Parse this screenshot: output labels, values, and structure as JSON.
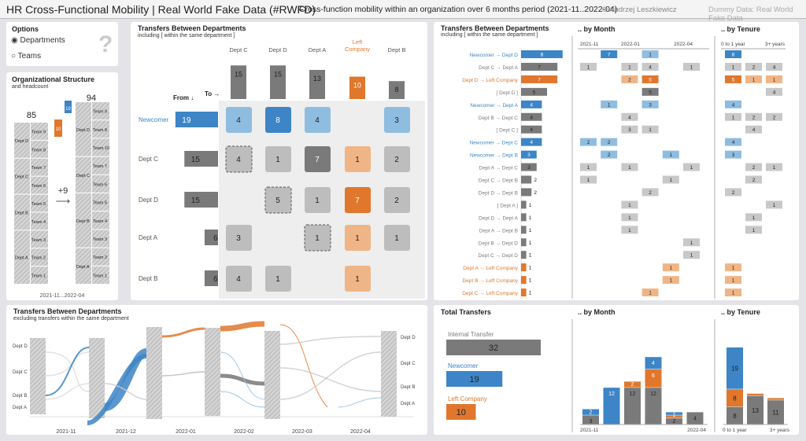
{
  "header": {
    "title": "HR Cross-Functional Mobility | Real World Fake Data (#RWFD)",
    "subtitle": "Cross-function mobility within an organization over 6 months period (2021-11..2022-04)",
    "author": "© Andrzej Leszkiewicz",
    "dummy": "Dummy Data: Real World Fake Data"
  },
  "colors": {
    "newcomer": "#3d85c6",
    "newcomer_light": "#8fbde0",
    "left": "#e0772d",
    "left_light": "#f0b586",
    "internal": "#7a7a7a",
    "internal_light": "#c8c8c8",
    "hatch": "#b5b5b5"
  },
  "options": {
    "title": "Options",
    "items": [
      {
        "label": "Departments",
        "selected": true
      },
      {
        "label": "Teams",
        "selected": false
      }
    ],
    "help": "?"
  },
  "org": {
    "title": "Organizational Structure",
    "subtitle": "and headcount",
    "before": "85",
    "after": "94",
    "delta": "+9",
    "arrow": "⟶",
    "period": "2021-11...2022-04",
    "new_count": "19",
    "left_count": "10",
    "left_col": [
      {
        "dept": "Dept D",
        "teams": [
          "Team 9",
          "Team 8"
        ]
      },
      {
        "dept": "Dept C",
        "teams": [
          "Team 7",
          "Team 6"
        ]
      },
      {
        "dept": "Dept B",
        "teams": [
          "Team 5",
          "Team 4"
        ]
      },
      {
        "dept": "Dept A",
        "teams": [
          "Team 3",
          "Team 2",
          "Team 1"
        ]
      }
    ],
    "right_col": [
      {
        "dept": "Dept D",
        "teams": [
          "Team 9",
          "Team 8",
          "Team 10"
        ]
      },
      {
        "dept": "Dept C",
        "teams": [
          "Team 7",
          "Team 6"
        ]
      },
      {
        "dept": "Dept B",
        "teams": [
          "Team 5",
          "Team 4",
          "Team 3"
        ]
      },
      {
        "dept": "Dept A",
        "teams": [
          "Team 2",
          "Team 1"
        ]
      }
    ]
  },
  "matrix": {
    "title": "Transfers Between Departments",
    "subtitle": "including  [ within the same department ]",
    "from": "From ↓",
    "to": "To →",
    "cols": [
      {
        "label": "Dept C",
        "total": 15
      },
      {
        "label": "Dept D",
        "total": 15
      },
      {
        "label": "Dept A",
        "total": 13
      },
      {
        "label": "Left Company",
        "total": 10
      },
      {
        "label": "Dept B",
        "total": 8
      }
    ],
    "rows": [
      {
        "label": "Newcomer",
        "total": 19
      },
      {
        "label": "Dept C",
        "total": 15
      },
      {
        "label": "Dept D",
        "total": 15
      },
      {
        "label": "Dept A",
        "total": 6
      },
      {
        "label": "Dept B",
        "total": 6
      }
    ],
    "cells": [
      [
        4,
        8,
        4,
        null,
        3
      ],
      [
        4,
        1,
        7,
        1,
        2
      ],
      [
        null,
        5,
        1,
        7,
        2
      ],
      [
        3,
        null,
        1,
        1,
        1
      ],
      [
        4,
        1,
        null,
        1,
        null
      ]
    ]
  },
  "flows": {
    "title": "Transfers Between Departments",
    "subtitle": "including  [ within the same department ]",
    "items": [
      {
        "label": "Newcomer → Dept D",
        "v": 8,
        "t": "new"
      },
      {
        "label": "Dept C → Dept A",
        "v": 7,
        "t": "int"
      },
      {
        "label": "Dept D → Left Company",
        "v": 7,
        "t": "left"
      },
      {
        "label": "[ Dept D ]",
        "v": 5,
        "t": "int"
      },
      {
        "label": "Newcomer → Dept A",
        "v": 4,
        "t": "new"
      },
      {
        "label": "Dept B → Dept C",
        "v": 4,
        "t": "int"
      },
      {
        "label": "[ Dept C ]",
        "v": 4,
        "t": "int"
      },
      {
        "label": "Newcomer → Dept C",
        "v": 4,
        "t": "new"
      },
      {
        "label": "Newcomer → Dept B",
        "v": 3,
        "t": "new"
      },
      {
        "label": "Dept A → Dept C",
        "v": 3,
        "t": "int"
      },
      {
        "label": "Dept C → Dept B",
        "v": 2,
        "t": "int"
      },
      {
        "label": "Dept D → Dept B",
        "v": 2,
        "t": "int"
      },
      {
        "label": "[ Dept A ]",
        "v": 1,
        "t": "int"
      },
      {
        "label": "Dept D → Dept A",
        "v": 1,
        "t": "int"
      },
      {
        "label": "Dept A → Dept B",
        "v": 1,
        "t": "int"
      },
      {
        "label": "Dept B → Dept D",
        "v": 1,
        "t": "int"
      },
      {
        "label": "Dept C → Dept D",
        "v": 1,
        "t": "int"
      },
      {
        "label": "Dept A → Left Company",
        "v": 1,
        "t": "left"
      },
      {
        "label": "Dept B → Left Company",
        "v": 1,
        "t": "left"
      },
      {
        "label": "Dept C → Left Company",
        "v": 1,
        "t": "left"
      }
    ],
    "month_title": ".. by Month",
    "month_ticks": [
      "2021-11",
      "2022-01",
      "2022-04"
    ],
    "months": [
      [
        null,
        7,
        null,
        1,
        null,
        null
      ],
      [
        1,
        null,
        1,
        4,
        null,
        1
      ],
      [
        null,
        null,
        2,
        5,
        null,
        null
      ],
      [
        null,
        null,
        null,
        5,
        null,
        null
      ],
      [
        null,
        1,
        null,
        3,
        null,
        null
      ],
      [
        null,
        null,
        4,
        null,
        null,
        null
      ],
      [
        null,
        null,
        3,
        1,
        null,
        null
      ],
      [
        2,
        2,
        null,
        null,
        null,
        null
      ],
      [
        null,
        2,
        null,
        null,
        1,
        null
      ],
      [
        1,
        null,
        1,
        null,
        null,
        1
      ],
      [
        1,
        null,
        null,
        null,
        1,
        null
      ],
      [
        null,
        null,
        null,
        2,
        null,
        null
      ],
      [
        null,
        null,
        1,
        null,
        null,
        null
      ],
      [
        null,
        null,
        1,
        null,
        null,
        null
      ],
      [
        null,
        null,
        1,
        null,
        null,
        null
      ],
      [
        null,
        null,
        null,
        null,
        null,
        1
      ],
      [
        null,
        null,
        null,
        null,
        null,
        1
      ],
      [
        null,
        null,
        null,
        null,
        1,
        null
      ],
      [
        null,
        null,
        null,
        null,
        1,
        null
      ],
      [
        null,
        null,
        null,
        1,
        null,
        null
      ]
    ],
    "tenure_title": ".. by Tenure",
    "tenure_ticks": [
      "0 to 1 year",
      "3+ years"
    ],
    "tenure": [
      [
        8,
        null,
        null
      ],
      [
        1,
        2,
        4
      ],
      [
        5,
        1,
        1
      ],
      [
        null,
        null,
        4
      ],
      [
        4,
        null,
        null
      ],
      [
        1,
        2,
        2
      ],
      [
        null,
        4,
        null
      ],
      [
        4,
        null,
        null
      ],
      [
        3,
        null,
        null
      ],
      [
        null,
        2,
        1
      ],
      [
        null,
        2,
        null
      ],
      [
        2,
        null,
        null
      ],
      [
        null,
        null,
        1
      ],
      [
        null,
        1,
        null
      ],
      [
        null,
        1,
        null
      ],
      [
        null,
        null,
        null
      ],
      [
        null,
        null,
        null
      ],
      [
        1,
        null,
        null
      ],
      [
        1,
        null,
        null
      ],
      [
        1,
        null,
        null
      ]
    ]
  },
  "sankey": {
    "title": "Transfers Between Departments",
    "subtitle": "excluding transfers within the same department",
    "months": [
      "2021-11",
      "2021-12",
      "2022-01",
      "2022-02",
      "2022-03",
      "2022-04"
    ],
    "left_labels": [
      "Dept D",
      "Dept C",
      "Dept B",
      "Dept A"
    ],
    "right_labels": [
      "Dept D",
      "Dept C",
      "Dept B",
      "Dept A"
    ]
  },
  "totals": {
    "title": "Total Transfers",
    "items": [
      {
        "label": "Internal Transfer",
        "v": 32,
        "t": "int"
      },
      {
        "label": "Newcomer",
        "v": 19,
        "t": "new"
      },
      {
        "label": "Left Company",
        "v": 10,
        "t": "left"
      }
    ],
    "month_title": ".. by Month",
    "month_ticks": [
      "2021-11",
      "2022-04"
    ],
    "by_month": [
      {
        "int": 3,
        "new": 2,
        "left": 0
      },
      {
        "int": 0,
        "new": 12,
        "left": 0
      },
      {
        "int": 12,
        "new": 0,
        "left": 2
      },
      {
        "int": 12,
        "new": 4,
        "left": 6
      },
      {
        "int": 2,
        "new": 1,
        "left": 1
      },
      {
        "int": 4,
        "new": 0,
        "left": 0
      }
    ],
    "tenure_title": ".. by Tenure",
    "tenure_ticks": [
      "0 to 1 year",
      "3+ years"
    ],
    "by_tenure": [
      {
        "int": 8,
        "new": 19,
        "left": 8
      },
      {
        "int": 13,
        "new": 0,
        "left": 1
      },
      {
        "int": 11,
        "new": 0,
        "left": 1
      }
    ]
  }
}
